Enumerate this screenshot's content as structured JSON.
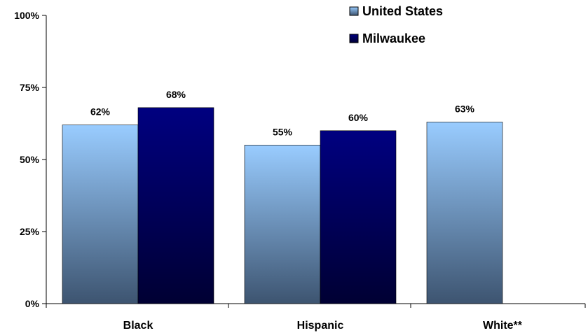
{
  "chart_data": {
    "type": "bar",
    "categories": [
      "Black",
      "Hispanic",
      "White**"
    ],
    "series": [
      {
        "name": "United States",
        "values": [
          62,
          55,
          63
        ],
        "labels": [
          "62%",
          "55%",
          "63%"
        ],
        "color_top": "#99ccff",
        "color_bottom": "#3d5470"
      },
      {
        "name": "Milwaukee",
        "values": [
          68,
          60,
          null
        ],
        "labels": [
          "68%",
          "60%",
          ""
        ],
        "color_top": "#000080",
        "color_bottom": "#000033"
      }
    ],
    "yticks": [
      "0%",
      "25%",
      "50%",
      "75%",
      "100%"
    ],
    "ylim": [
      0,
      100
    ],
    "title": "",
    "xlabel": "",
    "ylabel": "",
    "grid": false,
    "legend": "top-right"
  }
}
